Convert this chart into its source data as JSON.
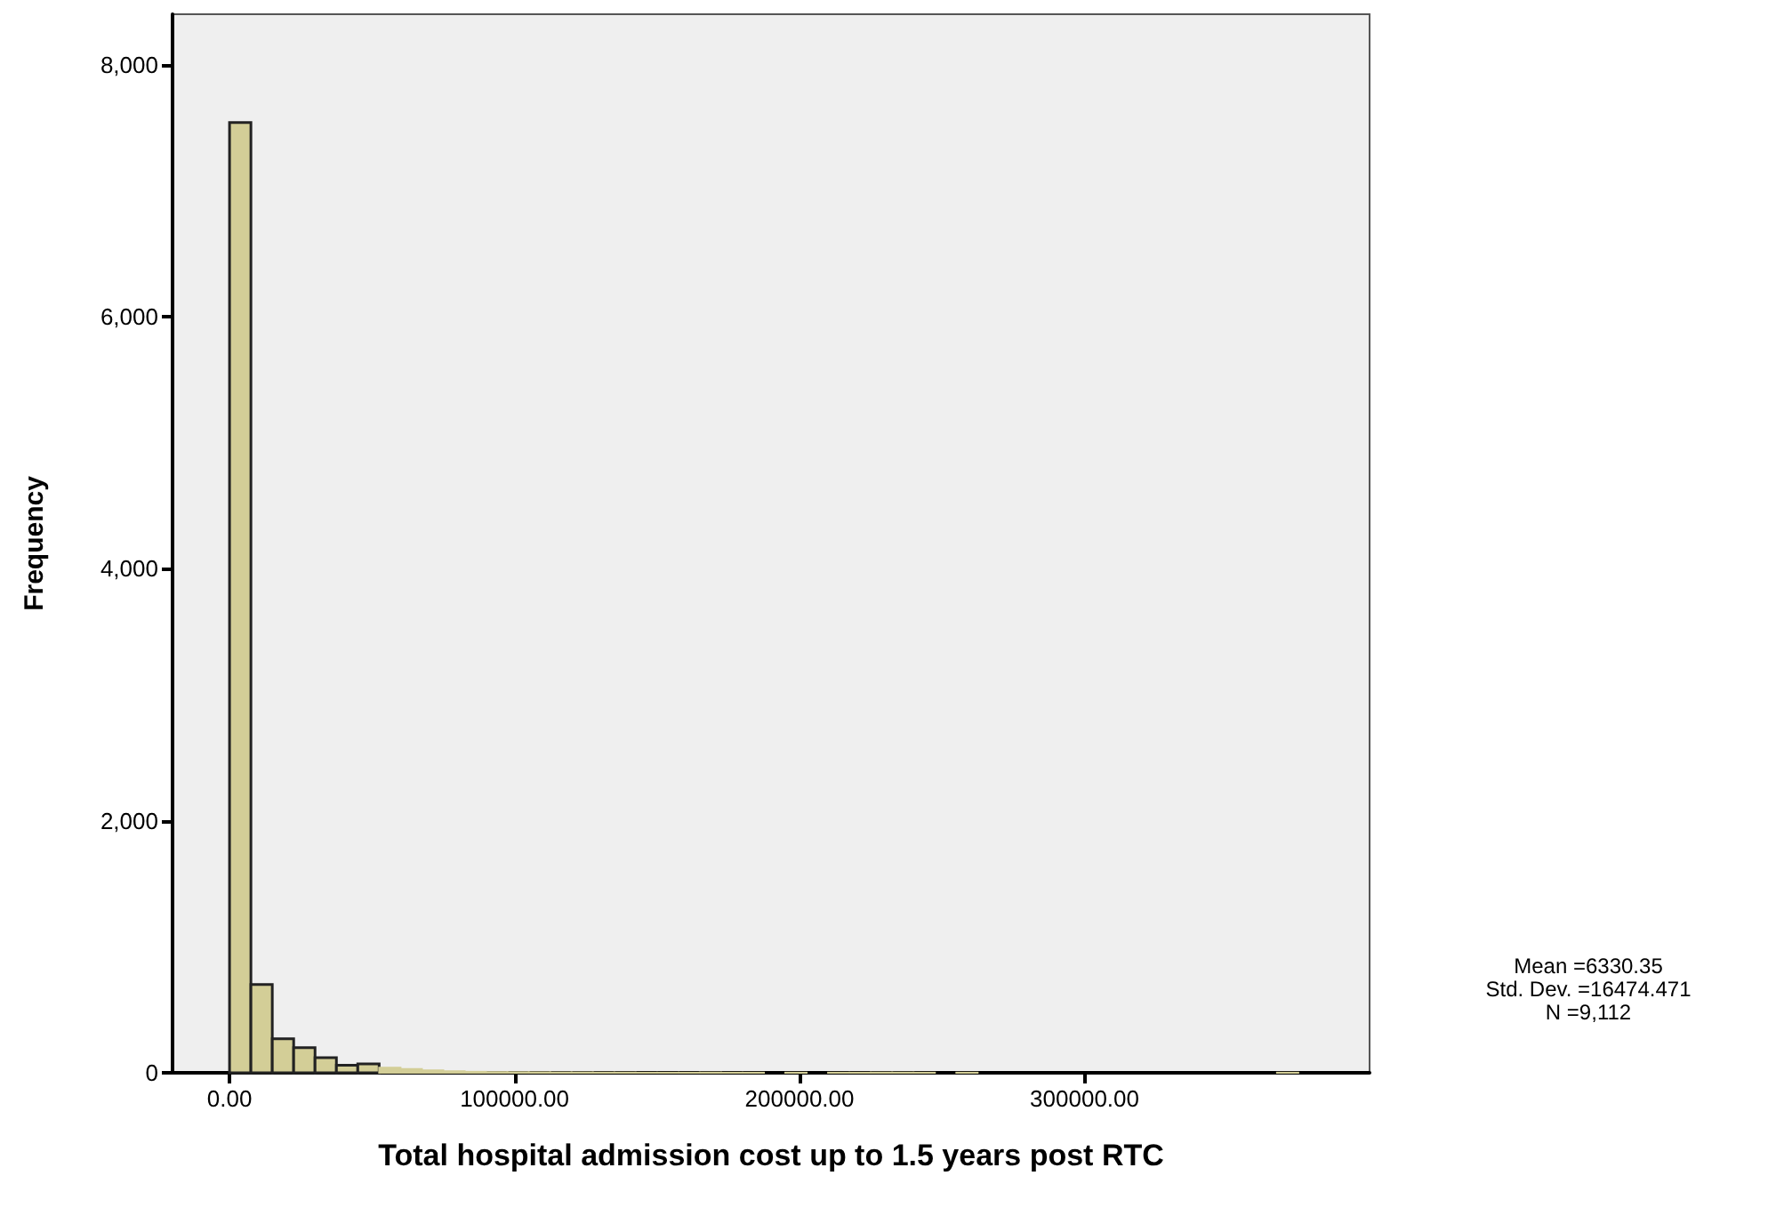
{
  "chart_data": {
    "type": "histogram",
    "xlabel": "Total hospital admission cost up to 1.5 years post RTC",
    "ylabel": "Frequency",
    "bins": [
      0,
      7500,
      15000,
      22500,
      30000,
      37500,
      45000,
      52500,
      60000,
      67500,
      75000,
      82500,
      90000,
      97500,
      105000,
      112500,
      120000,
      127500,
      135000,
      142500,
      150000,
      157500,
      165000,
      172500,
      180000,
      187500,
      195000,
      202500,
      210000,
      217500,
      225000,
      232500,
      240000,
      247500,
      255000,
      262500,
      270000,
      277500,
      285000,
      292500,
      300000,
      307500,
      315000,
      322500,
      330000,
      337500,
      345000,
      352500,
      360000,
      367500,
      375000
    ],
    "values": [
      7540,
      700,
      270,
      200,
      120,
      60,
      70,
      40,
      30,
      20,
      12,
      8,
      6,
      5,
      4,
      3,
      3,
      2,
      2,
      1,
      1,
      1,
      2,
      1,
      1,
      0,
      1,
      0,
      1,
      1,
      2,
      1,
      1,
      0,
      1,
      0,
      0,
      0,
      0,
      0,
      0,
      0,
      0,
      0,
      0,
      0,
      0,
      0,
      0,
      1
    ],
    "color": "#d3ce97",
    "xlim": [
      -20000,
      400000
    ],
    "xticks": [
      {
        "value": 0,
        "label": "0.00"
      },
      {
        "value": 100000,
        "label": "100000.00"
      },
      {
        "value": 200000,
        "label": "200000.00"
      },
      {
        "value": 300000,
        "label": "300000.00"
      }
    ],
    "ylim": [
      0,
      8400
    ],
    "yticks": [
      {
        "value": 0,
        "label": "0"
      },
      {
        "value": 2000,
        "label": "2,000"
      },
      {
        "value": 4000,
        "label": "4,000"
      },
      {
        "value": 6000,
        "label": "6,000"
      },
      {
        "value": 8000,
        "label": "8,000"
      }
    ],
    "grid": false,
    "annotations": [
      "Mean =6330.35",
      "Std. Dev. =16474.471",
      "N =9,112"
    ]
  }
}
